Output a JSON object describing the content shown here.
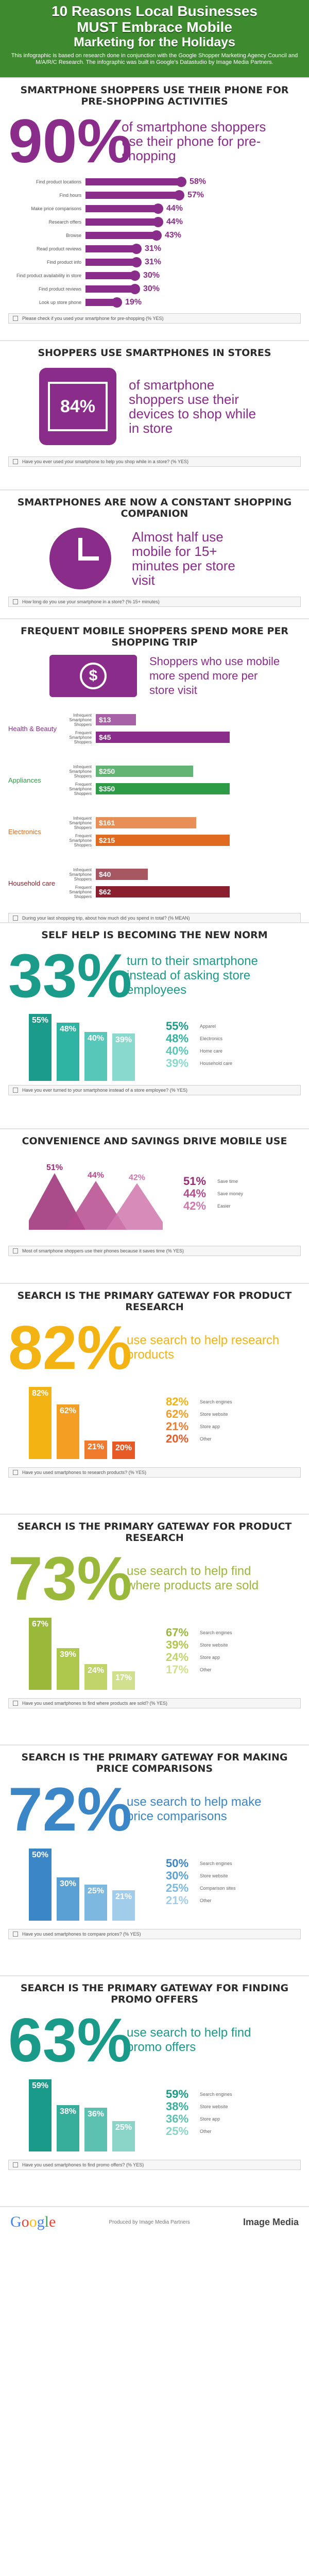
{
  "header": {
    "title_line1": "10 Reasons Local Businesses",
    "title_line2": "MUST Embrace Mobile",
    "title_line3": "Marketing for the Holidays",
    "sub": "This infographic is based on research done in conjunction with the Google Shopper Marketing Agency Council and M/A/R/C Research. The infographic was built in Google's Datastudio by Image Media Partners."
  },
  "s1": {
    "title": "SMARTPHONE SHOPPERS USE THEIR PHONE FOR PRE-SHOPPING ACTIVITIES",
    "big": "90%",
    "big_text": "of smartphone shoppers use their phone for pre-shopping",
    "rows": [
      {
        "label": "Find product locations",
        "value": "58%",
        "pct": 58
      },
      {
        "label": "Find hours",
        "value": "57%",
        "pct": 57
      },
      {
        "label": "Make price comparisons",
        "value": "44%",
        "pct": 44
      },
      {
        "label": "Research offers",
        "value": "44%",
        "pct": 44
      },
      {
        "label": "Browse",
        "value": "43%",
        "pct": 43
      },
      {
        "label": "Read product reviews",
        "value": "31%",
        "pct": 31
      },
      {
        "label": "Find product info",
        "value": "31%",
        "pct": 31
      },
      {
        "label": "Find product availability in store",
        "value": "30%",
        "pct": 30
      },
      {
        "label": "Find product reviews",
        "value": "30%",
        "pct": 30
      },
      {
        "label": "Look up store phone",
        "value": "19%",
        "pct": 19
      }
    ],
    "note": "Please check if you used your smartphone for pre-shopping (% YES)"
  },
  "s2": {
    "title": "SHOPPERS USE SMARTPHONES IN STORES",
    "big": "84%",
    "big_text": "of smartphone shoppers use their devices to shop while in store",
    "note": "Have you ever used your smartphone to help you shop while in a store? (% YES)"
  },
  "s3": {
    "title": "SMARTPHONES ARE NOW A CONSTANT SHOPPING COMPANION",
    "big_text": "Almost half use mobile for 15+ minutes per store visit",
    "note": "How long do you use your smartphone in a store? (% 15+ minutes)"
  },
  "s4": {
    "title": "FREQUENT MOBILE SHOPPERS SPEND MORE PER SHOPPING TRIP",
    "big_text": "Shoppers who use mobile more spend more per store visit",
    "groups": [
      {
        "name": "Health & Beauty",
        "rows": [
          {
            "label": "Infrequent Smartphone Shoppers",
            "value": "$13",
            "amt": 13
          },
          {
            "label": "Frequent Smartphone Shoppers",
            "value": "$45",
            "amt": 45
          }
        ]
      },
      {
        "name": "Appliances",
        "rows": [
          {
            "label": "Infrequent Smartphone Shoppers",
            "value": "$250",
            "amt": 250
          },
          {
            "label": "Frequent Smartphone Shoppers",
            "value": "$350",
            "amt": 350
          }
        ]
      },
      {
        "name": "Electronics",
        "rows": [
          {
            "label": "Infrequent Smartphone Shoppers",
            "value": "$161",
            "amt": 161
          },
          {
            "label": "Frequent Smartphone Shoppers",
            "value": "$215",
            "amt": 215
          }
        ]
      },
      {
        "name": "Household care",
        "rows": [
          {
            "label": "Infrequent Smartphone Shoppers",
            "value": "$40",
            "amt": 40
          },
          {
            "label": "Frequent Smartphone Shoppers",
            "value": "$62",
            "amt": 62
          }
        ]
      }
    ],
    "note": "During your last shopping trip, about how much did you spend in total? (% MEAN)"
  },
  "s5": {
    "title": "SELF HELP IS BECOMING THE NEW NORM",
    "big": "33%",
    "big_text": "turn to their smartphone instead of asking store employees",
    "bars": [
      {
        "value": "55%",
        "pct": 55,
        "color": "#1b9b8a",
        "label": "Apparel"
      },
      {
        "value": "48%",
        "pct": 48,
        "color": "#2fb3a2",
        "label": "Electronics"
      },
      {
        "value": "40%",
        "pct": 40,
        "color": "#56c7b8",
        "label": "Home care"
      },
      {
        "value": "39%",
        "pct": 39,
        "color": "#8ad9cf",
        "label": "Household care"
      }
    ],
    "note": "Have you ever turned to your smartphone instead of a store employee? (% YES)"
  },
  "s6": {
    "title": "CONVENIENCE AND SAVINGS DRIVE MOBILE USE",
    "peaks": [
      {
        "value": "51%",
        "pct": 51,
        "color": "#9b2b76",
        "label": "Save time"
      },
      {
        "value": "44%",
        "pct": 44,
        "color": "#b64a8e",
        "label": "Save money"
      },
      {
        "value": "42%",
        "pct": 42,
        "color": "#cf77ad",
        "label": "Easier"
      }
    ],
    "note": "Most of smartphone shoppers use their phones because it saves time (% YES)"
  },
  "s7": {
    "title": "SEARCH IS THE PRIMARY GATEWAY FOR PRODUCT RESEARCH",
    "big": "82%",
    "big_text": "use search to help research products",
    "bars": [
      {
        "value": "82%",
        "pct": 82,
        "color": "#f2b313",
        "label": "Search engines"
      },
      {
        "value": "62%",
        "pct": 62,
        "color": "#f59e24",
        "label": "Store website"
      },
      {
        "value": "21%",
        "pct": 21,
        "color": "#f07b2c",
        "label": "Store app"
      },
      {
        "value": "20%",
        "pct": 20,
        "color": "#e85a25",
        "label": "Other"
      }
    ],
    "note": "Have you used smartphones to research products? (% YES)"
  },
  "s8": {
    "title": "SEARCH IS THE PRIMARY GATEWAY FOR PRODUCT RESEARCH",
    "big": "73%",
    "big_text": "use search to help find where products are sold",
    "bars": [
      {
        "value": "67%",
        "pct": 67,
        "color": "#9ab93a",
        "label": "Search engines"
      },
      {
        "value": "39%",
        "pct": 39,
        "color": "#aec84e",
        "label": "Store website"
      },
      {
        "value": "24%",
        "pct": 24,
        "color": "#c0d46a",
        "label": "Store app"
      },
      {
        "value": "17%",
        "pct": 17,
        "color": "#d1e08f",
        "label": "Other"
      }
    ],
    "note": "Have you used smartphones to find where products are sold? (% YES)"
  },
  "s9": {
    "title": "SEARCH IS THE PRIMARY GATEWAY FOR MAKING PRICE COMPARISONS",
    "big": "72%",
    "big_text": "use search to help make price comparisons",
    "bars": [
      {
        "value": "50%",
        "pct": 50,
        "color": "#3b86c6",
        "label": "Search engines"
      },
      {
        "value": "30%",
        "pct": 30,
        "color": "#5aa0d4",
        "label": "Store website"
      },
      {
        "value": "25%",
        "pct": 25,
        "color": "#7db8e0",
        "label": "Comparison sites"
      },
      {
        "value": "21%",
        "pct": 21,
        "color": "#a1cdeb",
        "label": "Other"
      }
    ],
    "note": "Have you used smartphones to compare prices? (% YES)"
  },
  "s10": {
    "title": "SEARCH IS THE PRIMARY GATEWAY FOR FINDING PROMO OFFERS",
    "big": "63%",
    "big_text": "use search to help find promo offers",
    "bars": [
      {
        "value": "59%",
        "pct": 59,
        "color": "#1a9a88",
        "label": "Search engines"
      },
      {
        "value": "38%",
        "pct": 38,
        "color": "#37ae9c",
        "label": "Store website"
      },
      {
        "value": "36%",
        "pct": 36,
        "color": "#5cc1b1",
        "label": "Store app"
      },
      {
        "value": "25%",
        "pct": 25,
        "color": "#8ad4c8",
        "label": "Other"
      }
    ],
    "note": "Have you used smartphones to find promo offers? (% YES)"
  },
  "footer": {
    "left": "Google",
    "mid": "Produced by Image Media Partners",
    "right": "Image Media"
  }
}
